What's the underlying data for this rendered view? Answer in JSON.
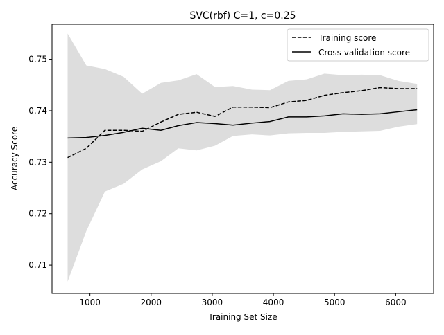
{
  "chart_data": {
    "type": "line",
    "title": "SVC(rbf) C=1, c=0.25",
    "xlabel": "Training Set Size",
    "ylabel": "Accuracy Score",
    "xlim": [
      380,
      6620
    ],
    "ylim": [
      0.7045,
      0.7568
    ],
    "xticks": [
      1000,
      2000,
      3000,
      4000,
      5000,
      6000
    ],
    "xtick_labels": [
      "1000",
      "2000",
      "3000",
      "4000",
      "5000",
      "6000"
    ],
    "yticks": [
      0.71,
      0.72,
      0.73,
      0.74,
      0.75
    ],
    "ytick_labels": [
      "0.71",
      "0.72",
      "0.73",
      "0.74",
      "0.75"
    ],
    "grid": false,
    "legend_position": "upper right",
    "band_color": "#dddddd",
    "x": [
      635,
      940,
      1245,
      1550,
      1855,
      2160,
      2445,
      2745,
      3045,
      3340,
      3650,
      3945,
      4245,
      4545,
      4835,
      5140,
      5445,
      5745,
      6045,
      6350
    ],
    "series": [
      {
        "name": "Training score",
        "style": "dashed",
        "color": "#000000",
        "values": [
          0.7309,
          0.7327,
          0.7362,
          0.7362,
          0.736,
          0.7378,
          0.7393,
          0.7397,
          0.7389,
          0.7407,
          0.7407,
          0.7406,
          0.7417,
          0.742,
          0.743,
          0.7435,
          0.7439,
          0.7445,
          0.7443,
          0.7443
        ],
        "band_upper": [
          0.755,
          0.7488,
          0.7481,
          0.7466,
          0.7433,
          0.7454,
          0.7459,
          0.7471,
          0.7446,
          0.7448,
          0.7441,
          0.744,
          0.7458,
          0.7461,
          0.7472,
          0.7469,
          0.747,
          0.7469,
          0.7458,
          0.7452
        ],
        "band_lower": [
          0.7068,
          0.7166,
          0.7243,
          0.7258,
          0.7286,
          0.7302,
          0.7327,
          0.7323,
          0.7332,
          0.7351,
          0.7354,
          0.7352,
          0.7356,
          0.7357,
          0.7357,
          0.7359,
          0.736,
          0.7361,
          0.7369,
          0.7374
        ]
      },
      {
        "name": "Cross-validation score",
        "style": "solid",
        "color": "#000000",
        "values": [
          0.7347,
          0.7348,
          0.7352,
          0.7358,
          0.7366,
          0.7362,
          0.7371,
          0.7377,
          0.7375,
          0.7372,
          0.7376,
          0.7379,
          0.7388,
          0.7388,
          0.739,
          0.7394,
          0.7393,
          0.7394,
          0.7398,
          0.7402
        ]
      }
    ]
  }
}
